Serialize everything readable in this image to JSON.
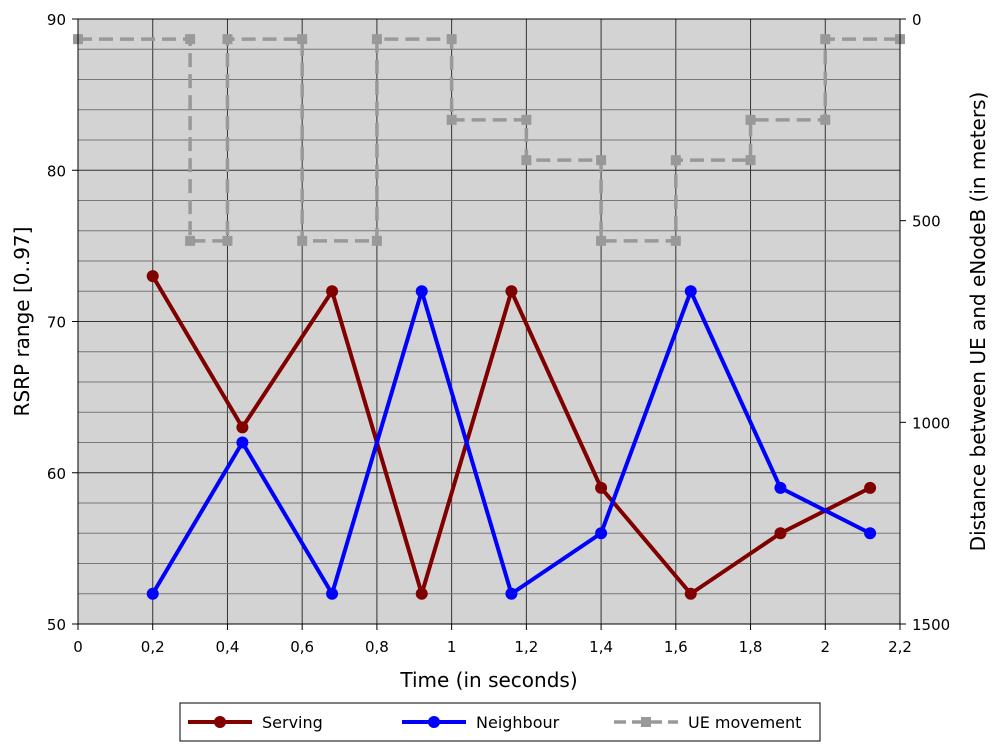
{
  "chart_data": {
    "type": "line",
    "xlabel": "Time (in seconds)",
    "ylabel": "RSRP range [0..97]",
    "y2label": "Distance between UE and eNodeB (in meters)",
    "xlim": [
      0,
      2.2
    ],
    "ylim": [
      50,
      90
    ],
    "y2lim": [
      0,
      1500
    ],
    "y2_inverted": true,
    "x_ticks": [
      0,
      0.2,
      0.4,
      0.6,
      0.8,
      1,
      1.2,
      1.4,
      1.6,
      1.8,
      2,
      2.2
    ],
    "x_tick_labels": [
      "0",
      "0,2",
      "0,4",
      "0,6",
      "0,8",
      "1",
      "1,2",
      "1,4",
      "1,6",
      "1,8",
      "2",
      "2,2"
    ],
    "y_ticks": [
      50,
      60,
      70,
      80,
      90
    ],
    "y_tick_labels": [
      "50",
      "60",
      "70",
      "80",
      "90"
    ],
    "y2_ticks": [
      0,
      500,
      1000,
      1500
    ],
    "y2_tick_labels": [
      "0",
      "500",
      "1000",
      "1500"
    ],
    "grid": true,
    "legend_position": "bottom",
    "background": "#d3d3d3",
    "series": [
      {
        "name": "Serving",
        "color": "#800000",
        "axis": "left",
        "marker": "circle",
        "style": "solid",
        "x": [
          0.2,
          0.44,
          0.68,
          0.92,
          1.16,
          1.4,
          1.64,
          1.88,
          2.12
        ],
        "y": [
          73,
          63,
          72,
          52,
          72,
          59,
          52,
          56,
          59
        ]
      },
      {
        "name": "Neighbour",
        "color": "#0000ff",
        "axis": "left",
        "marker": "circle",
        "style": "solid",
        "x": [
          0.2,
          0.44,
          0.68,
          0.92,
          1.16,
          1.4,
          1.64,
          1.88,
          2.12
        ],
        "y": [
          52,
          62,
          52,
          72,
          52,
          56,
          72,
          59,
          56
        ]
      },
      {
        "name": "UE movement",
        "color": "#999999",
        "axis": "right",
        "marker": "square",
        "style": "dashed",
        "x": [
          0,
          0.3,
          0.3,
          0.4,
          0.4,
          0.6,
          0.6,
          0.8,
          0.8,
          1.0,
          1.0,
          1.2,
          1.2,
          1.4,
          1.4,
          1.6,
          1.6,
          1.8,
          1.8,
          2.0,
          2.0,
          2.2
        ],
        "y": [
          50,
          50,
          550,
          550,
          50,
          50,
          550,
          550,
          50,
          50,
          250,
          250,
          350,
          350,
          550,
          550,
          350,
          350,
          250,
          250,
          50,
          50
        ]
      }
    ]
  }
}
